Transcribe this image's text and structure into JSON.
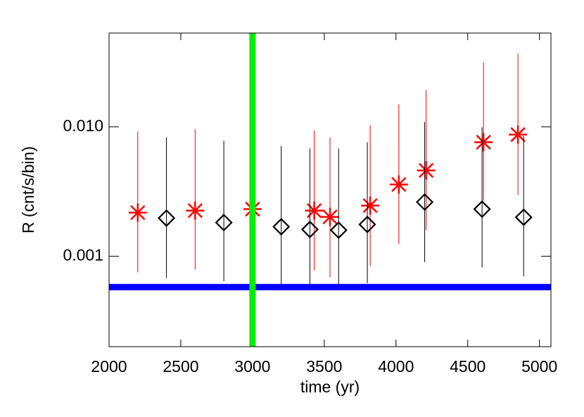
{
  "chart_data": {
    "type": "scatter",
    "x_label": "time (yr)",
    "y_label": "R (cnt/s/bin)",
    "xlim": [
      2000,
      5080
    ],
    "xticks": [
      2000,
      2500,
      3000,
      3500,
      4000,
      4500,
      5000
    ],
    "ylim": [
      0.0002,
      0.053
    ],
    "yticks": [
      {
        "value": 0.001,
        "label": "0.001"
      },
      {
        "value": 0.01,
        "label": "0.010"
      }
    ],
    "y_log": true,
    "series": [
      {
        "color": "#ff0000",
        "marker": "asterisk",
        "x": [
          2200,
          2600,
          3000,
          3430,
          3540,
          3820,
          4020,
          4210,
          4610,
          4850
        ],
        "values": [
          0.00217,
          0.00225,
          0.00231,
          0.00225,
          0.00201,
          0.00246,
          0.00358,
          0.0046,
          0.0076,
          0.0087
        ],
        "lower": [
          0.00075,
          0.00079,
          0.0008,
          0.00078,
          0.00069,
          0.00084,
          0.00124,
          0.00159,
          0.00269,
          0.00297
        ],
        "upper": [
          0.0092,
          0.0096,
          0.0095,
          0.0094,
          0.0083,
          0.0103,
          0.0149,
          0.0192,
          0.0316,
          0.0368
        ]
      },
      {
        "color": "#000000",
        "marker": "diamond",
        "x": [
          2400,
          2800,
          3200,
          3400,
          3600,
          3800,
          4200,
          4600,
          4890
        ],
        "values": [
          0.00197,
          0.00182,
          0.00169,
          0.00161,
          0.00159,
          0.00176,
          0.00262,
          0.00231,
          0.002
        ],
        "lower": [
          0.00068,
          0.00064,
          0.0006,
          0.00056,
          0.00055,
          0.00062,
          0.0009,
          0.00082,
          0.0007
        ],
        "upper": [
          0.0083,
          0.0078,
          0.0071,
          0.0068,
          0.0068,
          0.0076,
          0.0109,
          0.0099,
          0.0085
        ]
      }
    ],
    "vlines": [
      {
        "value": 3000,
        "color": "#00ee00"
      }
    ],
    "hlines": [
      {
        "value": 0.000577,
        "color": "#0000ff"
      }
    ]
  }
}
